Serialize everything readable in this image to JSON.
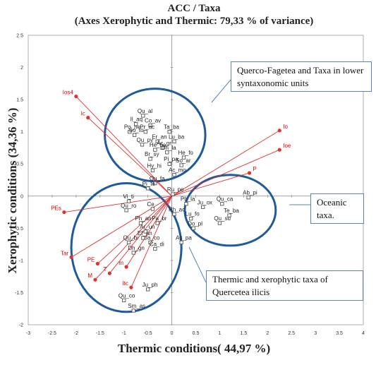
{
  "chart_data": {
    "type": "scatter",
    "title": "ACC / Taxa",
    "subtitle": "(Axes Xerophytic and Thermic: 79,33 % of variance)",
    "xlabel": "Thermic conditions( 44,97 %)",
    "ylabel": "Xerophytic  conditions (34,36 %)",
    "xlim": [
      -3,
      4
    ],
    "ylim": [
      -2,
      2.5
    ],
    "xticks": [
      "-3",
      "-2.5",
      "-2",
      "-1.5",
      "-1",
      "-0.5",
      "0",
      "0.5",
      "1",
      "1.5",
      "2",
      "2.5",
      "3",
      "3.5",
      "4"
    ],
    "yticks": [
      "2.5",
      "2",
      "1.5",
      "1",
      "0.5",
      "0",
      "-0.5",
      "-1",
      "-1.5",
      "-2"
    ],
    "grid": false,
    "origin_axes": true,
    "colors": {
      "species": "#555555",
      "environment": "#e03030",
      "ellipse": "#1f5a9a",
      "callout": "#5a83b8"
    },
    "species": [
      {
        "label": "Qu_al",
        "x": -0.6,
        "y": 1.25
      },
      {
        "label": "Il_aq",
        "x": -0.75,
        "y": 1.12
      },
      {
        "label": "Co_av",
        "x": -0.45,
        "y": 1.1
      },
      {
        "label": "Po_ne",
        "x": -0.88,
        "y": 1.0
      },
      {
        "label": "Pr_ac",
        "x": -0.55,
        "y": 1.0
      },
      {
        "label": "So_to",
        "x": -0.78,
        "y": 0.95
      },
      {
        "label": "Ta_ba",
        "x": -0.05,
        "y": 1.0
      },
      {
        "label": "Er_an",
        "x": -0.3,
        "y": 0.85
      },
      {
        "label": "Lu_ba",
        "x": 0.05,
        "y": 0.85
      },
      {
        "label": "Qu_py",
        "x": -0.62,
        "y": 0.8
      },
      {
        "label": "Ac_gr",
        "x": -0.2,
        "y": 0.75
      },
      {
        "label": "He_he",
        "x": -0.35,
        "y": 0.72
      },
      {
        "label": "Dh_la",
        "x": -0.1,
        "y": 0.68
      },
      {
        "label": "Br_sy",
        "x": -0.45,
        "y": 0.58
      },
      {
        "label": "He_fo",
        "x": 0.25,
        "y": 0.6
      },
      {
        "label": "Pi_pa",
        "x": -0.05,
        "y": 0.5
      },
      {
        "label": "So_ar",
        "x": 0.2,
        "y": 0.48
      },
      {
        "label": "Hy_hi",
        "x": -0.4,
        "y": 0.4
      },
      {
        "label": "Ac_mo",
        "x": 0.05,
        "y": 0.33
      },
      {
        "label": "Qu_fa",
        "x": -0.35,
        "y": 0.2
      },
      {
        "label": "Pi_te",
        "x": -0.5,
        "y": 0.12
      },
      {
        "label": "Ru_pe",
        "x": 0.02,
        "y": 0.03
      },
      {
        "label": "Ab_pi",
        "x": 1.6,
        "y": -0.02
      },
      {
        "label": "Qu_ca",
        "x": 1.05,
        "y": -0.12
      },
      {
        "label": "Te_ba",
        "x": 1.2,
        "y": -0.3
      },
      {
        "label": "Qu_su",
        "x": 1.0,
        "y": -0.42
      },
      {
        "label": "Vi_ti",
        "x": -0.9,
        "y": -0.08
      },
      {
        "label": "Ce",
        "x": -0.4,
        "y": -0.2
      },
      {
        "label": "Ph_la",
        "x": 0.3,
        "y": -0.12
      },
      {
        "label": "Ju_ox",
        "x": 0.65,
        "y": -0.17
      },
      {
        "label": "Rh_ac",
        "x": 0.05,
        "y": -0.28
      },
      {
        "label": "Lu_fo",
        "x": 0.4,
        "y": -0.35
      },
      {
        "label": "Qu_ro",
        "x": -0.95,
        "y": -0.22
      },
      {
        "label": "Do_pl",
        "x": 0.45,
        "y": -0.5
      },
      {
        "label": "Pa_br",
        "x": -0.3,
        "y": -0.42
      },
      {
        "label": "Ph_an",
        "x": -0.65,
        "y": -0.42
      },
      {
        "label": "Ar_un",
        "x": -0.55,
        "y": -0.55
      },
      {
        "label": "Ef_an",
        "x": -0.6,
        "y": -0.65
      },
      {
        "label": "Qu_bi",
        "x": -0.9,
        "y": -0.72
      },
      {
        "label": "Ja_co",
        "x": -0.45,
        "y": -0.72
      },
      {
        "label": "Ca_di",
        "x": -0.35,
        "y": -0.82
      },
      {
        "label": "As_pa",
        "x": 0.2,
        "y": -0.72
      },
      {
        "label": "Dh_gn",
        "x": -0.8,
        "y": -0.88
      },
      {
        "label": "Ju_ph",
        "x": -0.5,
        "y": -1.45
      },
      {
        "label": "Qu_co",
        "x": -1.0,
        "y": -1.62
      },
      {
        "label": "Sm_as",
        "x": -0.8,
        "y": -1.78
      }
    ],
    "environment": [
      {
        "label": "Ios4",
        "x": -2.0,
        "y": 1.55
      },
      {
        "label": "Ic",
        "x": -1.75,
        "y": 1.22
      },
      {
        "label": "Io",
        "x": 2.25,
        "y": 1.02
      },
      {
        "label": "Ioe",
        "x": 2.25,
        "y": 0.72
      },
      {
        "label": "P",
        "x": 1.62,
        "y": 0.36
      },
      {
        "label": "PEs",
        "x": -2.25,
        "y": -0.25
      },
      {
        "label": "Tar",
        "x": -2.1,
        "y": -0.95
      },
      {
        "label": "PE",
        "x": -1.55,
        "y": -1.05
      },
      {
        "label": "M",
        "x": -1.6,
        "y": -1.3
      },
      {
        "label": "T",
        "x": -1.3,
        "y": -1.2
      },
      {
        "label": "m",
        "x": -0.95,
        "y": -1.1
      },
      {
        "label": "Itc",
        "x": -0.85,
        "y": -1.42
      }
    ],
    "ellipses": [
      {
        "cx": -0.35,
        "cy": 0.95,
        "rx": 1.05,
        "ry": 0.72
      },
      {
        "cx": -0.95,
        "cy": -0.8,
        "rx": 1.15,
        "ry": 1.0
      },
      {
        "cx": 1.22,
        "cy": -0.22,
        "rx": 0.95,
        "ry": 0.55
      }
    ]
  },
  "annotations": {
    "querco": "Querco-Fagetea and Taxa in lower syntaxonomic units",
    "oceanic": "Oceanic taxa.",
    "thermic": "Thermic and xerophytic taxa of Quercetea ilicis"
  }
}
